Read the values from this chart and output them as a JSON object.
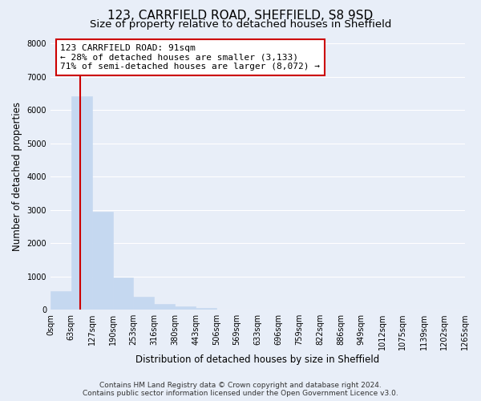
{
  "title": "123, CARRFIELD ROAD, SHEFFIELD, S8 9SD",
  "subtitle": "Size of property relative to detached houses in Sheffield",
  "xlabel": "Distribution of detached houses by size in Sheffield",
  "ylabel": "Number of detached properties",
  "bar_edges": [
    0,
    63,
    127,
    190,
    253,
    316,
    380,
    443,
    506,
    569,
    633,
    696,
    759,
    822,
    886,
    949,
    1012,
    1075,
    1139,
    1202,
    1265
  ],
  "bar_heights": [
    560,
    6400,
    2950,
    970,
    380,
    175,
    90,
    50,
    0,
    0,
    0,
    0,
    0,
    0,
    0,
    0,
    0,
    0,
    0,
    0
  ],
  "bar_color": "#c5d8f0",
  "bar_edge_color": "#c5d8f0",
  "property_line_x": 91,
  "property_line_color": "#cc0000",
  "annotation_text": "123 CARRFIELD ROAD: 91sqm\n← 28% of detached houses are smaller (3,133)\n71% of semi-detached houses are larger (8,072) →",
  "annotation_box_color": "#ffffff",
  "annotation_box_edge": "#cc0000",
  "ylim": [
    0,
    8000
  ],
  "yticks": [
    0,
    1000,
    2000,
    3000,
    4000,
    5000,
    6000,
    7000,
    8000
  ],
  "tick_labels": [
    "0sqm",
    "63sqm",
    "127sqm",
    "190sqm",
    "253sqm",
    "316sqm",
    "380sqm",
    "443sqm",
    "506sqm",
    "569sqm",
    "633sqm",
    "696sqm",
    "759sqm",
    "822sqm",
    "886sqm",
    "949sqm",
    "1012sqm",
    "1075sqm",
    "1139sqm",
    "1202sqm",
    "1265sqm"
  ],
  "footer_text": "Contains HM Land Registry data © Crown copyright and database right 2024.\nContains public sector information licensed under the Open Government Licence v3.0.",
  "background_color": "#e8eef8",
  "plot_bg_color": "#e8eef8",
  "grid_color": "#ffffff",
  "title_fontsize": 11,
  "subtitle_fontsize": 9.5,
  "axis_label_fontsize": 8.5,
  "tick_fontsize": 7,
  "footer_fontsize": 6.5,
  "annotation_fontsize": 8
}
